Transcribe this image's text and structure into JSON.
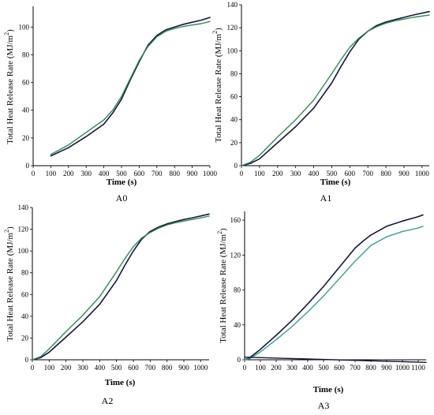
{
  "colors": {
    "dark_series": "#16163f",
    "green_series": "#2e8b4e",
    "teal_series": "#3c9a8c",
    "axis": "#000000"
  },
  "chart_data": [
    {
      "type": "line",
      "panel": "A0",
      "caption": "A0",
      "xlabel": "Time (s)",
      "ylabel": "Total Heat Release Rate (MJ/m",
      "ylabel_sup": "2",
      "ylabel_end": ")",
      "xlim": [
        0,
        1000
      ],
      "ylim": [
        0,
        115
      ],
      "xticks": [
        "0",
        "100",
        "200",
        "300",
        "400",
        "500",
        "600",
        "700",
        "800",
        "900",
        "1000"
      ],
      "yticks": [
        "0",
        "20",
        "40",
        "60",
        "80",
        "100"
      ],
      "series": [
        {
          "color": "#16163f",
          "x": [
            100,
            200,
            300,
            400,
            450,
            500,
            550,
            600,
            650,
            700,
            750,
            800,
            850,
            900,
            950,
            1000
          ],
          "y": [
            7,
            13,
            21,
            30,
            38,
            48,
            62,
            75,
            87,
            94,
            98,
            100,
            102,
            103.5,
            105,
            107
          ]
        },
        {
          "color": "#2e8b4e",
          "x": [
            100,
            200,
            300,
            400,
            450,
            500,
            550,
            600,
            650,
            700,
            750,
            800,
            850,
            900,
            950,
            1000
          ],
          "y": [
            8,
            15,
            24,
            33,
            40,
            50,
            63,
            76,
            86,
            93,
            97,
            99,
            100.5,
            101.5,
            102.5,
            104
          ]
        }
      ]
    },
    {
      "type": "line",
      "panel": "A1",
      "caption": "A1",
      "xlabel": "Time (s)",
      "ylabel": "Total Heat Release Rate (MJ/m",
      "ylabel_sup": "2",
      "ylabel_end": ")",
      "xlim": [
        0,
        1040
      ],
      "ylim": [
        0,
        140
      ],
      "xticks": [
        "0",
        "100",
        "200",
        "300",
        "400",
        "500",
        "600",
        "700",
        "800",
        "900",
        "1000"
      ],
      "yticks": [
        "0",
        "20",
        "40",
        "60",
        "80",
        "100",
        "120",
        "140"
      ],
      "series": [
        {
          "color": "#16163f",
          "x": [
            0,
            50,
            100,
            200,
            300,
            400,
            500,
            550,
            600,
            650,
            700,
            750,
            800,
            850,
            900,
            950,
            1040
          ],
          "y": [
            0,
            2,
            6,
            20,
            34,
            50,
            72,
            86,
            99,
            110,
            117,
            122,
            125,
            127,
            129,
            131,
            134
          ]
        },
        {
          "color": "#2e8b4e",
          "x": [
            0,
            50,
            100,
            200,
            300,
            400,
            500,
            550,
            600,
            650,
            700,
            750,
            800,
            850,
            900,
            950,
            1040
          ],
          "y": [
            0,
            3,
            9,
            25,
            40,
            57,
            80,
            92,
            103,
            111,
            117,
            121,
            124,
            126,
            127.5,
            129,
            131
          ]
        }
      ]
    },
    {
      "type": "line",
      "panel": "A2",
      "caption": "A2",
      "xlabel": "Time (s)",
      "ylabel": "Total Heat Release Rate (MJ/m",
      "ylabel_sup": "2",
      "ylabel_end": ")",
      "xlim": [
        0,
        1050
      ],
      "ylim": [
        0,
        140
      ],
      "xticks": [
        "0",
        "100",
        "200",
        "300",
        "400",
        "500",
        "600",
        "700",
        "800",
        "900",
        "1000"
      ],
      "yticks": [
        "0",
        "20",
        "40",
        "60",
        "80",
        "100",
        "120",
        "140"
      ],
      "series": [
        {
          "color": "#16163f",
          "x": [
            0,
            50,
            100,
            200,
            300,
            400,
            500,
            550,
            600,
            650,
            700,
            750,
            800,
            850,
            900,
            950,
            1050
          ],
          "y": [
            0,
            2,
            7,
            21,
            35,
            51,
            73,
            87,
            100,
            111,
            118,
            122,
            125,
            127,
            129,
            130.5,
            134
          ]
        },
        {
          "color": "#2e8b4e",
          "x": [
            0,
            50,
            100,
            200,
            300,
            400,
            500,
            550,
            600,
            650,
            700,
            750,
            800,
            850,
            900,
            950,
            1050
          ],
          "y": [
            0,
            3,
            10,
            26,
            41,
            58,
            81,
            93,
            104,
            112,
            117,
            121,
            124,
            126,
            127.5,
            129,
            132
          ]
        }
      ]
    },
    {
      "type": "line",
      "panel": "A3",
      "caption": "A3",
      "xlabel": "Time (s)",
      "ylabel": "Total Heat Release Rate (MJ/m",
      "ylabel_sup": "2",
      "ylabel_end": ")",
      "xlim": [
        0,
        1150
      ],
      "ylim": [
        0,
        170
      ],
      "xticks": [
        "0",
        "100",
        "200",
        "300",
        "400",
        "500",
        "600",
        "700",
        "800",
        "900",
        "1000",
        "1100"
      ],
      "yticks": [
        "0",
        "40",
        "80",
        "120",
        "160"
      ],
      "series": [
        {
          "color": "#16163f",
          "x": [
            0,
            30,
            100,
            200,
            300,
            400,
            500,
            600,
            700,
            750,
            800,
            900,
            1000,
            1100,
            1130
          ],
          "y": [
            0,
            2,
            12,
            28,
            45,
            64,
            84,
            106,
            128,
            136,
            143,
            153,
            159,
            164,
            166
          ]
        },
        {
          "color": "#3c9a8c",
          "x": [
            0,
            30,
            100,
            200,
            300,
            400,
            500,
            600,
            700,
            750,
            800,
            900,
            1000,
            1100,
            1130
          ],
          "y": [
            0,
            1,
            9,
            23,
            38,
            55,
            73,
            93,
            113,
            122,
            131,
            141,
            147,
            151,
            153
          ]
        },
        {
          "color": "#16163f",
          "x": [
            0,
            1150
          ],
          "y": [
            3,
            -3
          ]
        }
      ]
    }
  ]
}
